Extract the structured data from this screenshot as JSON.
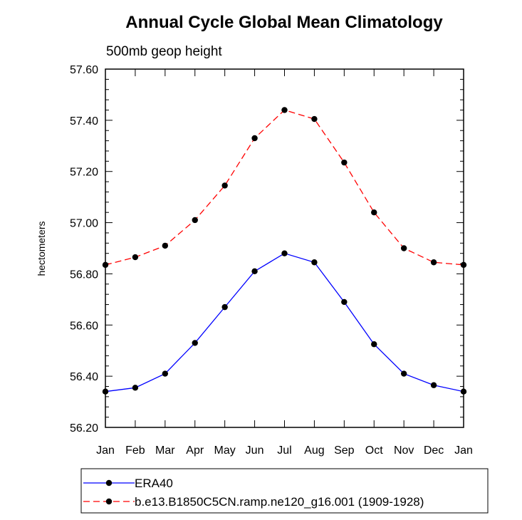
{
  "chart_data": {
    "type": "line",
    "title": "Annual Cycle Global Mean Climatology",
    "subtitle": "500mb geop height",
    "xlabel": "",
    "ylabel": "hectometers",
    "categories": [
      "Jan",
      "Feb",
      "Mar",
      "Apr",
      "May",
      "Jun",
      "Jul",
      "Aug",
      "Sep",
      "Oct",
      "Nov",
      "Dec",
      "Jan"
    ],
    "ylim": [
      56.2,
      57.6
    ],
    "yticks": [
      "56.20",
      "56.40",
      "56.60",
      "56.80",
      "57.00",
      "57.20",
      "57.40",
      "57.60"
    ],
    "grid": false,
    "legend_position": "bottom",
    "series": [
      {
        "name": "ERA40",
        "color": "#0000ff",
        "dash": "solid",
        "marker": "circle",
        "values": [
          56.34,
          56.355,
          56.41,
          56.53,
          56.67,
          56.81,
          56.88,
          56.845,
          56.69,
          56.525,
          56.41,
          56.365,
          56.34
        ]
      },
      {
        "name": "b.e13.B1850C5CN.ramp.ne120_g16.001 (1909-1928)",
        "color": "#ff0000",
        "dash": "dashed",
        "marker": "circle",
        "values": [
          56.835,
          56.865,
          56.91,
          57.01,
          57.145,
          57.33,
          57.44,
          57.405,
          57.235,
          57.04,
          56.9,
          56.845,
          56.835
        ]
      }
    ]
  }
}
